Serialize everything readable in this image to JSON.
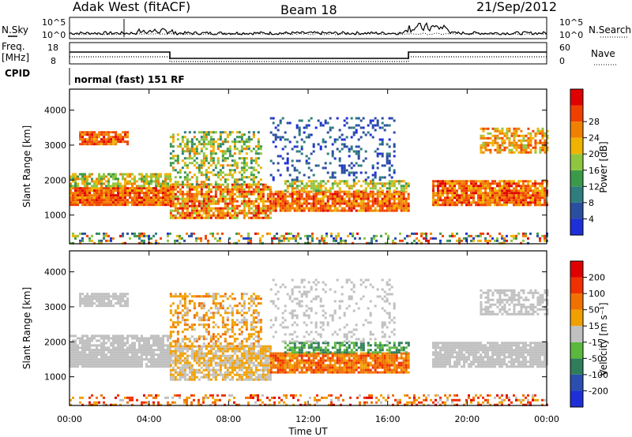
{
  "header": {
    "station": "Adak West (fitACF)",
    "beam": "Beam 18",
    "date": "21/Sep/2012"
  },
  "top_panels": {
    "nsky_label": "N.Sky",
    "nsky_ticks": [
      "10^5",
      "10^0"
    ],
    "nsearch_label": "N.Search",
    "nsearch_ticks": [
      "10^5",
      "10^0"
    ],
    "freq_label_1": "Freq.",
    "freq_label_2": "[MHz]",
    "freq_ticks": [
      "18",
      "8"
    ],
    "nave_label": "Nave",
    "nave_ticks": [
      "60",
      "0"
    ],
    "cpid_label": "CPID",
    "cpid_value": "normal (fast) 151 RF"
  },
  "chart_data": [
    {
      "type": "heatmap",
      "title": "",
      "ylabel": "Slant Range [km]",
      "xlabel": "",
      "ylim": [
        180,
        4600
      ],
      "yticks": [
        "1000",
        "2000",
        "3000",
        "4000"
      ],
      "colorbar": {
        "label": "Power [dB]",
        "ticks": [
          "4",
          "8",
          "12",
          "16",
          "20",
          "24",
          "28"
        ],
        "colors": [
          "#1f2fd8",
          "#2b4fa0",
          "#2f7d7d",
          "#3a9a4a",
          "#8ec63f",
          "#f0b400",
          "#f08000",
          "#f04000",
          "#e00000"
        ]
      }
    },
    {
      "type": "heatmap",
      "title": "",
      "ylabel": "Slant Range [km]",
      "xlabel": "Time UT",
      "ylim": [
        180,
        4600
      ],
      "yticks": [
        "1000",
        "2000",
        "3000",
        "4000"
      ],
      "xticks": [
        "00:00",
        "04:00",
        "08:00",
        "12:00",
        "16:00",
        "20:00",
        "00:00"
      ],
      "colorbar": {
        "label": "Velocity [m s⁻¹]",
        "ticks": [
          "200",
          "100",
          "50",
          "15",
          "-15",
          "-50",
          "-100",
          "-200"
        ],
        "colors": [
          "#1f2fd8",
          "#2a4fb0",
          "#2f7d5a",
          "#5ab83c",
          "#c0c0c0",
          "#f0a000",
          "#f07000",
          "#f03000",
          "#e00000"
        ]
      }
    }
  ]
}
